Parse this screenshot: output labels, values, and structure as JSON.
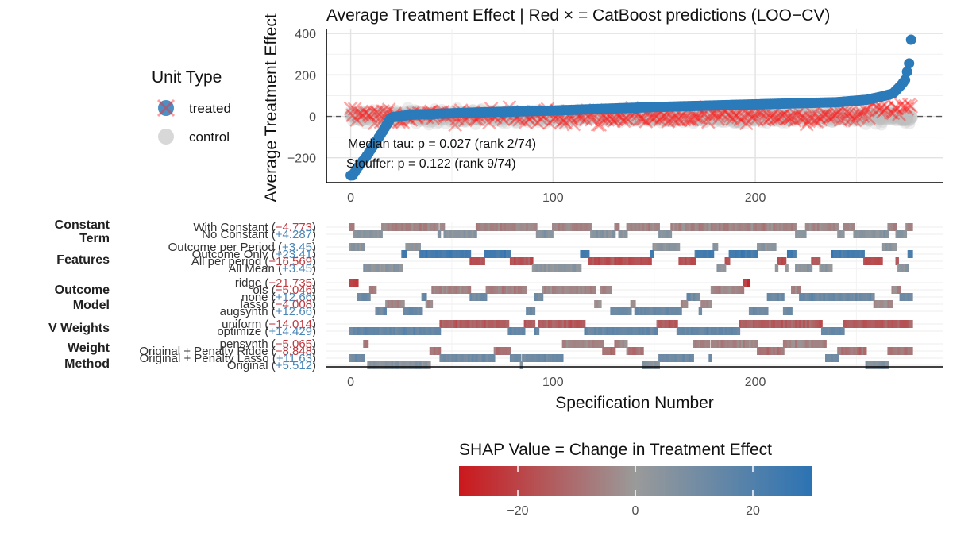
{
  "chart_data": [
    {
      "type": "scatter",
      "title": "Average Treatment Effect | Red × = CatBoost predictions (LOO−CV)",
      "ylabel": "Average Treatment Effect",
      "xlabel": "",
      "xlim": [
        -12,
        293
      ],
      "ylim": [
        -320,
        420
      ],
      "xticks": [
        0,
        100,
        200
      ],
      "yticks": [
        -200,
        0,
        200,
        400
      ],
      "reference_line_y": 0,
      "n_specifications": 280,
      "legend": {
        "title": "Unit Type",
        "position": "left",
        "entries": [
          {
            "label": "treated",
            "color": "#2b7bba"
          },
          {
            "label": "control",
            "color": "#bdbdbd"
          }
        ]
      },
      "annotations": [
        {
          "text": "Median tau: p = 0.027 (rank 2/74)"
        },
        {
          "text": "Stouffer: p = 0.122 (rank 9/74)"
        }
      ],
      "treated_anchors": {
        "x": [
          1,
          4,
          8,
          12,
          16,
          20,
          30,
          60,
          100,
          150,
          200,
          240,
          255,
          262,
          268,
          270,
          272,
          274,
          275,
          276,
          277
        ],
        "y": [
          -285,
          -240,
          -190,
          -130,
          -70,
          -5,
          8,
          18,
          28,
          45,
          58,
          68,
          80,
          95,
          110,
          130,
          150,
          175,
          215,
          255,
          370
        ]
      },
      "control_spread": 45,
      "catboost_spread": 55
    },
    {
      "type": "heatmap",
      "xlabel": "Specification Number",
      "xlim": [
        -12,
        293
      ],
      "xticks": [
        0,
        100,
        200
      ],
      "groups": [
        {
          "name": "Constant Term",
          "levels": [
            {
              "label": "With Constant",
              "shap": "−4.773"
            },
            {
              "label": "No Constant",
              "shap": "+4.287"
            }
          ]
        },
        {
          "name": "Features",
          "levels": [
            {
              "label": "Outcome per Period",
              "shap": "+3.45"
            },
            {
              "label": "Outcome Only",
              "shap": "+23.41"
            },
            {
              "label": "All per period",
              "shap": "−16.569"
            },
            {
              "label": "All Mean",
              "shap": "+3.45"
            }
          ]
        },
        {
          "name": "Outcome Model",
          "levels": [
            {
              "label": "ridge",
              "shap": "−21.735"
            },
            {
              "label": "ols",
              "shap": "−5.046"
            },
            {
              "label": "none",
              "shap": "+12.66"
            },
            {
              "label": "lasso",
              "shap": "−4.008"
            },
            {
              "label": "augsynth",
              "shap": "+12.66"
            }
          ]
        },
        {
          "name": "V Weights",
          "levels": [
            {
              "label": "uniform",
              "shap": "−14.014"
            },
            {
              "label": "optimize",
              "shap": "+14.429"
            }
          ]
        },
        {
          "name": "Weight Method",
          "levels": [
            {
              "label": "pensynth",
              "shap": "−5.065"
            },
            {
              "label": "Original + Penalty Ridge",
              "shap": "−8.848"
            },
            {
              "label": "Original + Penalty Lasso",
              "shap": "+11.63"
            },
            {
              "label": "Original",
              "shap": "+5.512"
            }
          ]
        }
      ],
      "colorbar": {
        "title": "SHAP Value = Change in Treatment Effect",
        "range": [
          -30,
          30
        ],
        "ticks": [
          -20,
          0,
          20
        ],
        "colors": {
          "low": "#cb181d",
          "mid": "#9a9a9a",
          "high": "#2c73b3"
        }
      }
    }
  ]
}
